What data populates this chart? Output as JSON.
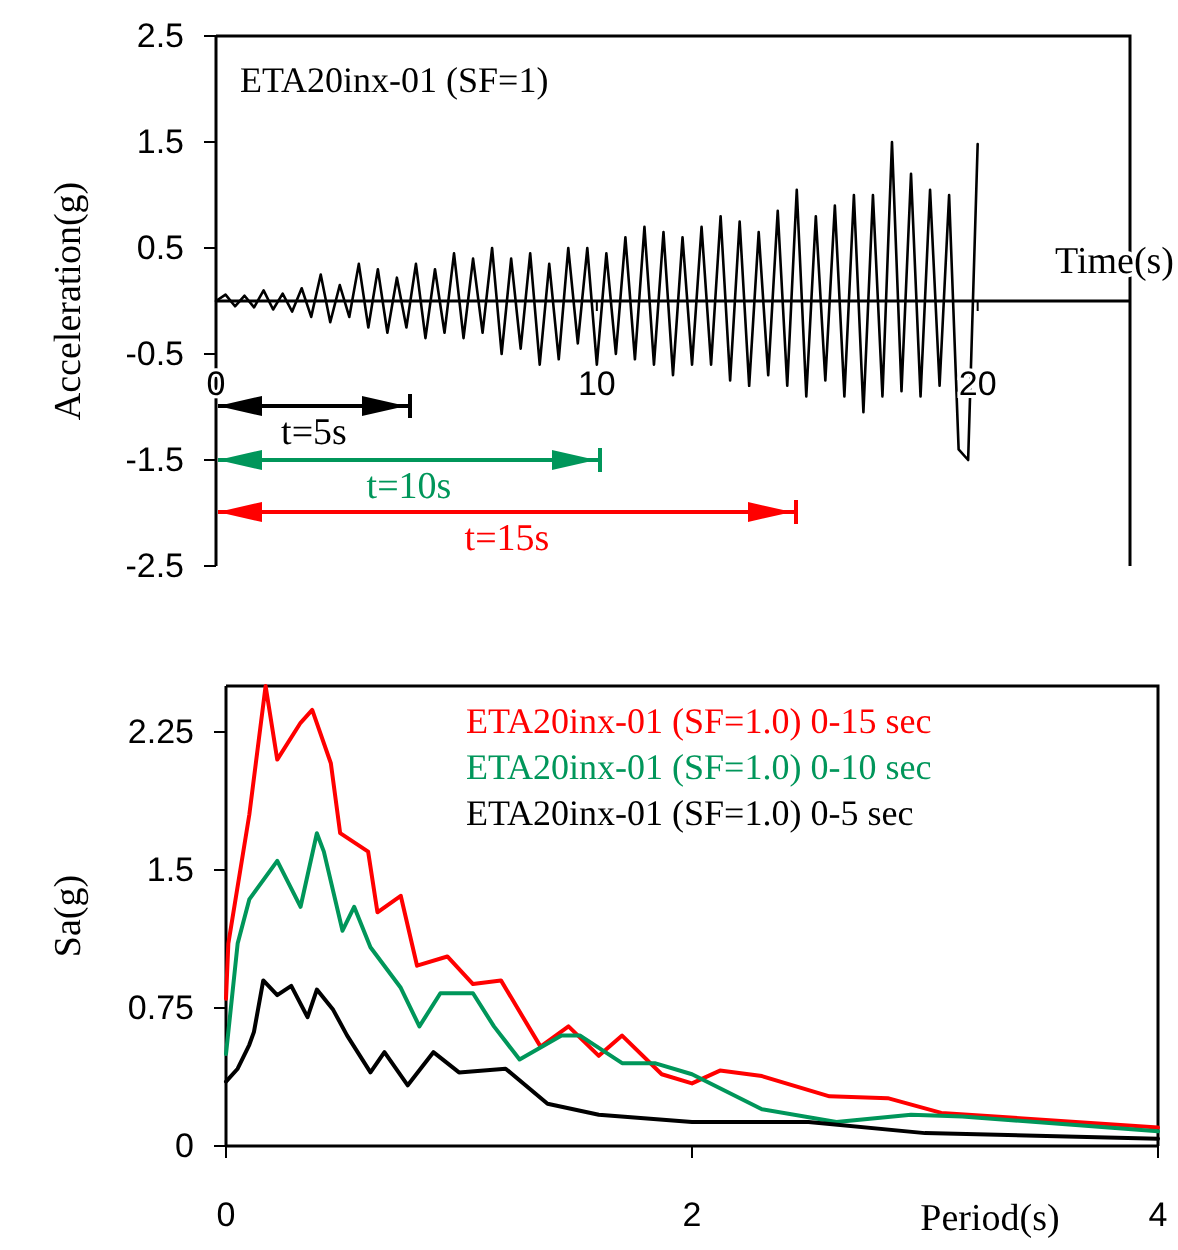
{
  "chart_data": [
    {
      "type": "line",
      "title": "ETA20inx-01 (SF=1)",
      "xlabel": "Time(s)",
      "ylabel": "Acceleration(g)",
      "xlim": [
        0,
        24
      ],
      "ylim": [
        -2.5,
        2.5
      ],
      "xticks": [
        0,
        10,
        20
      ],
      "yticks": [
        2.5,
        1.5,
        0.5,
        -0.5,
        -1.5,
        -2.5
      ],
      "x": [
        0,
        0.25,
        0.5,
        0.75,
        1,
        1.25,
        1.5,
        1.75,
        2,
        2.25,
        2.5,
        2.75,
        3,
        3.25,
        3.5,
        3.75,
        4,
        4.25,
        4.5,
        4.75,
        5,
        5.25,
        5.5,
        5.75,
        6,
        6.25,
        6.5,
        6.75,
        7,
        7.25,
        7.5,
        7.75,
        8,
        8.25,
        8.5,
        8.75,
        9,
        9.25,
        9.5,
        9.75,
        10,
        10.25,
        10.5,
        10.75,
        11,
        11.25,
        11.5,
        11.75,
        12,
        12.25,
        12.5,
        12.75,
        13,
        13.25,
        13.5,
        13.75,
        14,
        14.25,
        14.5,
        14.75,
        15,
        15.25,
        15.5,
        15.75,
        16,
        16.25,
        16.5,
        16.75,
        17,
        17.25,
        17.5,
        17.75,
        18,
        18.25,
        18.5,
        18.75,
        19,
        19.25,
        19.5,
        19.75,
        20
      ],
      "series": [
        {
          "color": "#000000",
          "values": [
            0,
            0.06,
            -0.05,
            0.05,
            -0.06,
            0.1,
            -0.08,
            0.07,
            -0.1,
            0.12,
            -0.15,
            0.25,
            -0.2,
            0.15,
            -0.15,
            0.35,
            -0.25,
            0.3,
            -0.3,
            0.22,
            -0.25,
            0.35,
            -0.35,
            0.3,
            -0.3,
            0.45,
            -0.35,
            0.4,
            -0.3,
            0.5,
            -0.5,
            0.4,
            -0.45,
            0.45,
            -0.6,
            0.35,
            -0.55,
            0.5,
            -0.4,
            0.5,
            -0.6,
            0.45,
            -0.5,
            0.6,
            -0.55,
            0.7,
            -0.6,
            0.65,
            -0.7,
            0.6,
            -0.6,
            0.7,
            -0.6,
            0.8,
            -0.75,
            0.75,
            -0.8,
            0.65,
            -0.7,
            0.85,
            -0.8,
            1.05,
            -0.9,
            0.8,
            -0.75,
            0.9,
            -0.9,
            1.0,
            -1.05,
            1.0,
            -0.9,
            1.5,
            -0.85,
            1.2,
            -0.9,
            1.05,
            -0.8,
            1.0,
            -1.4,
            -1.5,
            1.48
          ]
        }
      ],
      "annotations": [
        "t=5s",
        "t=10s",
        "t=15s"
      ]
    },
    {
      "type": "line",
      "xlabel": "Period(s)",
      "ylabel": "Sa(g)",
      "xlim": [
        0,
        4
      ],
      "ylim": [
        0,
        2.5
      ],
      "xticks": [
        0,
        2,
        4
      ],
      "yticks": [
        0,
        0.75,
        1.5,
        2.25
      ],
      "legend": "top right",
      "series": [
        {
          "name": "ETA20inx-01 (SF=1.0) 0-15 sec",
          "color": "#ff0000",
          "x": [
            0,
            0.01,
            0.1,
            0.17,
            0.22,
            0.32,
            0.37,
            0.45,
            0.49,
            0.61,
            0.65,
            0.75,
            0.82,
            0.95,
            1.06,
            1.18,
            1.35,
            1.47,
            1.6,
            1.7,
            1.87,
            2.0,
            2.12,
            2.3,
            2.59,
            2.84,
            3.07,
            4.0
          ],
          "values": [
            0.8,
            1.1,
            1.8,
            2.5,
            2.1,
            2.3,
            2.37,
            2.08,
            1.7,
            1.6,
            1.27,
            1.36,
            0.98,
            1.03,
            0.88,
            0.9,
            0.54,
            0.65,
            0.49,
            0.6,
            0.39,
            0.34,
            0.41,
            0.38,
            0.27,
            0.26,
            0.18,
            0.1
          ]
        },
        {
          "name": "ETA20inx-01 (SF=1.0) 0-10 sec",
          "color": "#00965a",
          "x": [
            0,
            0.05,
            0.1,
            0.22,
            0.32,
            0.39,
            0.42,
            0.5,
            0.55,
            0.62,
            0.75,
            0.83,
            0.92,
            1.06,
            1.15,
            1.26,
            1.44,
            1.52,
            1.7,
            1.84,
            2.0,
            2.3,
            2.62,
            2.94,
            3.16,
            4.0
          ],
          "values": [
            0.5,
            1.1,
            1.34,
            1.55,
            1.3,
            1.7,
            1.6,
            1.17,
            1.3,
            1.08,
            0.86,
            0.65,
            0.83,
            0.83,
            0.65,
            0.47,
            0.6,
            0.6,
            0.45,
            0.45,
            0.39,
            0.2,
            0.13,
            0.17,
            0.16,
            0.08
          ]
        },
        {
          "name": "ETA20inx-01 (SF=1.0) 0-5 sec",
          "color": "#000000",
          "x": [
            0,
            0.05,
            0.1,
            0.12,
            0.16,
            0.22,
            0.28,
            0.35,
            0.39,
            0.46,
            0.52,
            0.62,
            0.68,
            0.78,
            0.89,
            1.0,
            1.2,
            1.38,
            1.6,
            2.0,
            2.5,
            3.0,
            4.0
          ],
          "values": [
            0.35,
            0.42,
            0.55,
            0.62,
            0.9,
            0.82,
            0.87,
            0.7,
            0.85,
            0.74,
            0.6,
            0.4,
            0.51,
            0.33,
            0.51,
            0.4,
            0.42,
            0.23,
            0.17,
            0.13,
            0.13,
            0.07,
            0.04
          ]
        }
      ]
    }
  ]
}
